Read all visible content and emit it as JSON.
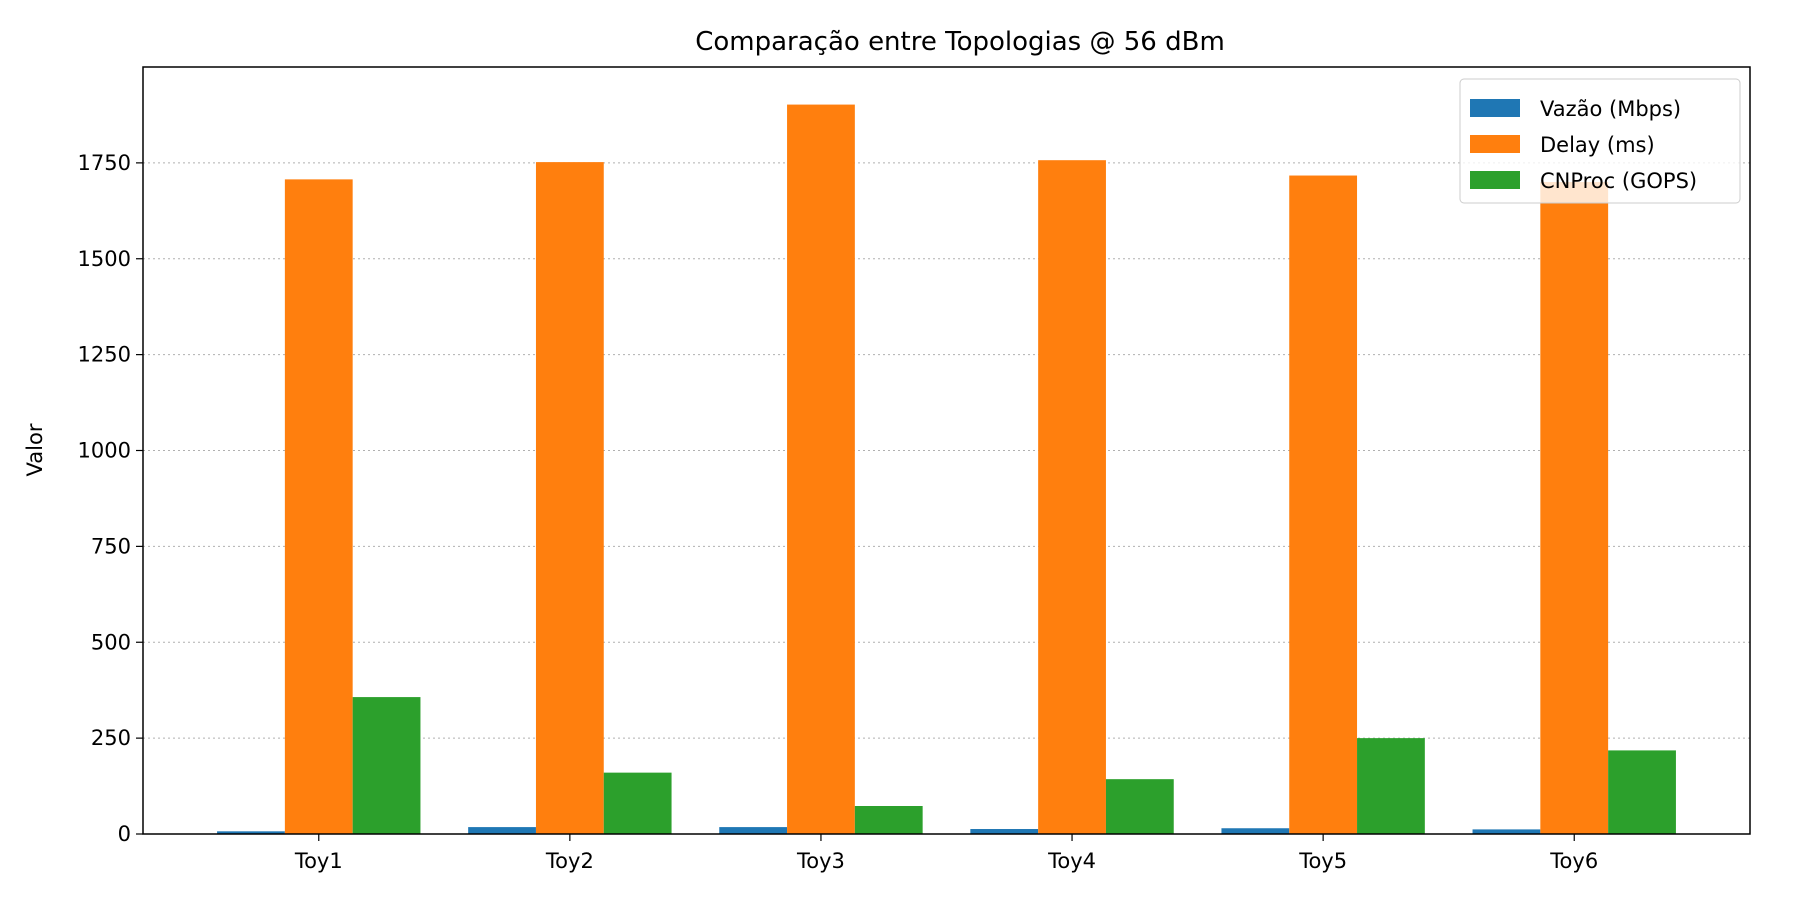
{
  "chart_data": {
    "type": "bar",
    "title": "Comparação entre Topologias @ 56 dBm",
    "xlabel": "",
    "ylabel": "Valor",
    "categories": [
      "Toy1",
      "Toy2",
      "Toy3",
      "Toy4",
      "Toy5",
      "Toy6"
    ],
    "ylim": [
      0,
      2000
    ],
    "yticks": [
      0,
      250,
      500,
      750,
      1000,
      1250,
      1500,
      1750
    ],
    "grid": "horizontal-dotted",
    "legend_position": "top-right",
    "series": [
      {
        "name": "Vazão (Mbps)",
        "color": "#1f77b4",
        "values": [
          7,
          18,
          18,
          13,
          15,
          12
        ]
      },
      {
        "name": "Delay (ms)",
        "color": "#ff7f0e",
        "values": [
          1707,
          1752,
          1902,
          1757,
          1717,
          1700
        ]
      },
      {
        "name": "CNProc (GOPS)",
        "color": "#2ca02c",
        "values": [
          357,
          160,
          73,
          143,
          250,
          218
        ]
      }
    ]
  }
}
